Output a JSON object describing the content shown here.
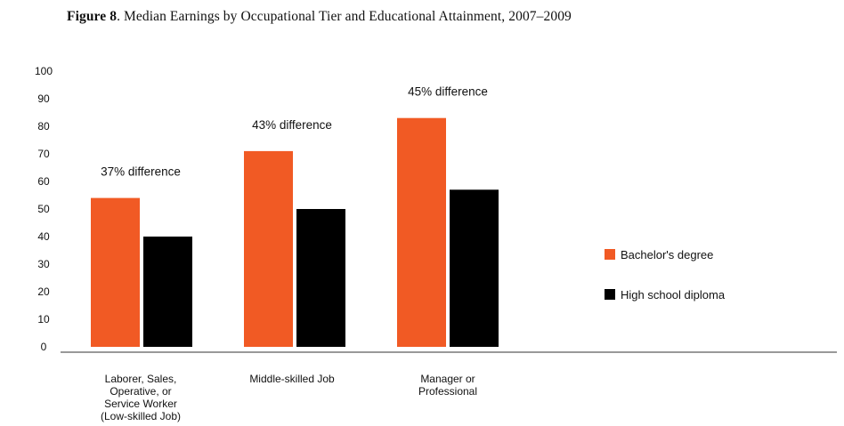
{
  "title": {
    "prefix": "Figure 8",
    "text": ". Median Earnings by Occupational Tier and Educational Attainment, 2007–2009"
  },
  "chart_data": {
    "type": "bar",
    "ylim": [
      0,
      100
    ],
    "yticks": [
      0,
      10,
      20,
      30,
      40,
      50,
      60,
      70,
      80,
      90,
      100
    ],
    "grid": false,
    "legend_position": "right",
    "categories": [
      [
        "Laborer, Sales,",
        "Operative, or",
        "Service Worker",
        "(Low-skilled Job)"
      ],
      [
        "Middle-skilled Job"
      ],
      [
        "Manager or",
        "Professional"
      ]
    ],
    "annotations": [
      "37% difference",
      "43% difference",
      "45% difference"
    ],
    "series": [
      {
        "name": "Bachelor's degree",
        "color": "#f15a24",
        "values": [
          54,
          71,
          83
        ]
      },
      {
        "name": "High school diploma",
        "color": "#000000",
        "values": [
          40,
          50,
          57
        ]
      }
    ]
  }
}
